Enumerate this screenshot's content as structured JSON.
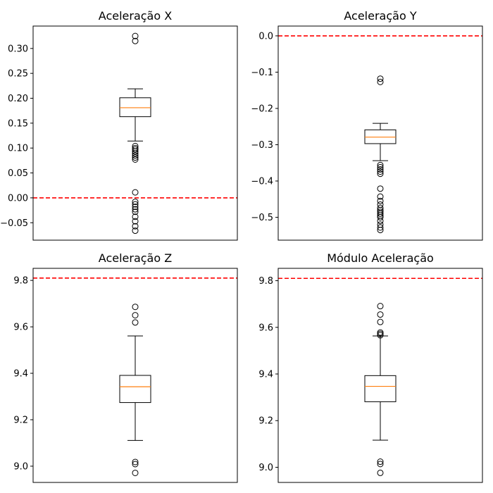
{
  "chart_data": [
    {
      "type": "box",
      "title": "Aceleração X",
      "ylim": [
        -0.085,
        0.345
      ],
      "yticks": [
        -0.05,
        0.0,
        0.05,
        0.1,
        0.15,
        0.2,
        0.25,
        0.3
      ],
      "ytick_labels": [
        "−0.05",
        "0.00",
        "0.05",
        "0.10",
        "0.15",
        "0.20",
        "0.25",
        "0.30"
      ],
      "box": {
        "whisker_low": 0.114,
        "q1": 0.163,
        "median": 0.181,
        "q3": 0.201,
        "whisker_high": 0.219
      },
      "outliers": [
        0.325,
        0.315,
        0.104,
        0.1,
        0.097,
        0.093,
        0.089,
        0.085,
        0.081,
        0.077,
        0.011,
        -0.008,
        -0.013,
        -0.018,
        -0.023,
        -0.028,
        -0.038,
        -0.047,
        -0.057,
        -0.066
      ],
      "reference_line": {
        "y": 0.0,
        "color": "#ff0000",
        "style": "dashed"
      }
    },
    {
      "type": "box",
      "title": "Aceleração Y",
      "ylim": [
        -0.563,
        0.027
      ],
      "yticks": [
        -0.5,
        -0.4,
        -0.3,
        -0.2,
        -0.1,
        0.0
      ],
      "ytick_labels": [
        "−0.5",
        "−0.4",
        "−0.3",
        "−0.2",
        "−0.1",
        "0.0"
      ],
      "box": {
        "whisker_low": -0.344,
        "q1": -0.297,
        "median": -0.279,
        "q3": -0.259,
        "whisker_high": -0.241
      },
      "outliers": [
        -0.118,
        -0.127,
        -0.356,
        -0.362,
        -0.368,
        -0.374,
        -0.38,
        -0.421,
        -0.443,
        -0.455,
        -0.465,
        -0.474,
        -0.48,
        -0.485,
        -0.49,
        -0.495,
        -0.5,
        -0.51,
        -0.52,
        -0.528,
        -0.535
      ],
      "reference_line": {
        "y": 0.0,
        "color": "#ff0000",
        "style": "dashed"
      }
    },
    {
      "type": "box",
      "title": "Aceleração Z",
      "ylim": [
        8.93,
        9.852
      ],
      "yticks": [
        9.0,
        9.2,
        9.4,
        9.6,
        9.8
      ],
      "ytick_labels": [
        "9.0",
        "9.2",
        "9.4",
        "9.6",
        "9.8"
      ],
      "box": {
        "whisker_low": 9.111,
        "q1": 9.274,
        "median": 9.342,
        "q3": 9.391,
        "whisker_high": 9.561
      },
      "outliers": [
        9.686,
        9.65,
        9.619,
        9.018,
        9.009,
        8.971
      ],
      "reference_line": {
        "y": 9.81,
        "color": "#ff0000",
        "style": "dashed"
      }
    },
    {
      "type": "box",
      "title": "Módulo Aceleração",
      "ylim": [
        8.935,
        9.853
      ],
      "yticks": [
        9.0,
        9.2,
        9.4,
        9.6,
        9.8
      ],
      "ytick_labels": [
        "9.0",
        "9.2",
        "9.4",
        "9.6",
        "9.8"
      ],
      "box": {
        "whisker_low": 9.116,
        "q1": 9.281,
        "median": 9.347,
        "q3": 9.393,
        "whisker_high": 9.563
      },
      "outliers": [
        9.691,
        9.655,
        9.623,
        9.578,
        9.572,
        9.566,
        9.024,
        9.014,
        8.976
      ],
      "reference_line": {
        "y": 9.81,
        "color": "#ff0000",
        "style": "dashed"
      }
    }
  ],
  "colors": {
    "box": "#000000",
    "median": "#ff7f0e",
    "reference": "#ff0000",
    "outlier": "#000000"
  }
}
